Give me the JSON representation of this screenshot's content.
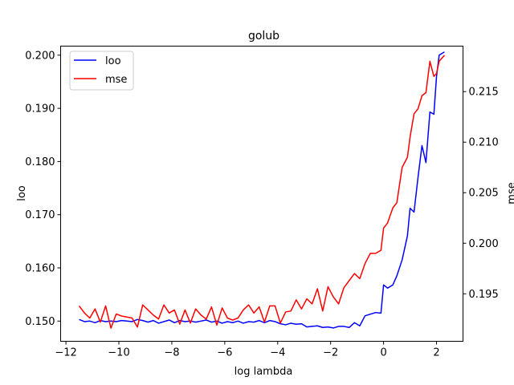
{
  "chart_data": {
    "type": "line",
    "title": "golub",
    "xlabel": "log lambda",
    "ylabel_left": "loo",
    "ylabel_right": "mse",
    "xlim": [
      -12.2,
      3.0
    ],
    "ylim_left": [
      0.1462,
      0.2017
    ],
    "ylim_right": [
      0.1903,
      0.2195
    ],
    "x_ticks": [
      -12,
      -10,
      -8,
      -6,
      -4,
      -2,
      0,
      2
    ],
    "x_tick_labels": [
      "−12",
      "−10",
      "−8",
      "−6",
      "−4",
      "−2",
      "0",
      "2"
    ],
    "y_left_ticks": [
      0.15,
      0.16,
      0.17,
      0.18,
      0.19,
      0.2
    ],
    "y_left_tick_labels": [
      "0.150",
      "0.160",
      "0.170",
      "0.180",
      "0.190",
      "0.200"
    ],
    "y_right_ticks": [
      0.195,
      0.2,
      0.205,
      0.21,
      0.215
    ],
    "y_right_tick_labels": [
      "0.195",
      "0.200",
      "0.205",
      "0.210",
      "0.215"
    ],
    "legend_position": "upper-left",
    "series": [
      {
        "name": "loo",
        "axis": "left",
        "color": "#0000ff",
        "x": [
          -11.5,
          -11.3,
          -11.1,
          -10.9,
          -10.7,
          -10.5,
          -10.3,
          -10.1,
          -9.9,
          -9.7,
          -9.5,
          -9.3,
          -9.1,
          -8.9,
          -8.7,
          -8.5,
          -8.3,
          -8.1,
          -7.9,
          -7.7,
          -7.5,
          -7.3,
          -7.1,
          -6.9,
          -6.7,
          -6.5,
          -6.3,
          -6.1,
          -5.9,
          -5.7,
          -5.5,
          -5.3,
          -5.1,
          -4.9,
          -4.7,
          -4.5,
          -4.3,
          -4.1,
          -3.9,
          -3.7,
          -3.5,
          -3.3,
          -3.1,
          -2.9,
          -2.7,
          -2.5,
          -2.3,
          -2.1,
          -1.9,
          -1.7,
          -1.5,
          -1.3,
          -1.1,
          -0.9,
          -0.7,
          -0.5,
          -0.3,
          -0.1,
          0.0,
          0.15,
          0.35,
          0.5,
          0.7,
          0.9,
          1.0,
          1.15,
          1.3,
          1.45,
          1.6,
          1.75,
          1.9,
          2.0,
          2.1,
          2.3
        ],
        "y": [
          0.1503,
          0.1499,
          0.15,
          0.1497,
          0.1501,
          0.1499,
          0.15,
          0.1499,
          0.1501,
          0.15,
          0.1499,
          0.1503,
          0.1501,
          0.1498,
          0.1501,
          0.1496,
          0.1499,
          0.1502,
          0.1497,
          0.1501,
          0.1499,
          0.15,
          0.1498,
          0.15,
          0.1502,
          0.1498,
          0.15,
          0.1496,
          0.1499,
          0.1497,
          0.15,
          0.1496,
          0.1499,
          0.1498,
          0.1501,
          0.1497,
          0.1501,
          0.1499,
          0.1495,
          0.1493,
          0.1496,
          0.1494,
          0.1495,
          0.1489,
          0.149,
          0.1491,
          0.1488,
          0.1489,
          0.1487,
          0.149,
          0.149,
          0.1488,
          0.1497,
          0.1491,
          0.151,
          0.1513,
          0.1516,
          0.1515,
          0.1568,
          0.1562,
          0.1568,
          0.1585,
          0.1615,
          0.166,
          0.1712,
          0.1705,
          0.177,
          0.183,
          0.1798,
          0.1893,
          0.1889,
          0.196,
          0.2,
          0.2006
        ]
      },
      {
        "name": "mse",
        "axis": "right",
        "color": "#ff0000",
        "x": [
          -11.5,
          -11.3,
          -11.1,
          -10.9,
          -10.7,
          -10.5,
          -10.3,
          -10.1,
          -9.9,
          -9.7,
          -9.5,
          -9.3,
          -9.1,
          -8.9,
          -8.7,
          -8.5,
          -8.3,
          -8.1,
          -7.9,
          -7.7,
          -7.5,
          -7.3,
          -7.1,
          -6.9,
          -6.7,
          -6.5,
          -6.3,
          -6.1,
          -5.9,
          -5.7,
          -5.5,
          -5.3,
          -5.1,
          -4.9,
          -4.7,
          -4.5,
          -4.3,
          -4.1,
          -3.9,
          -3.7,
          -3.5,
          -3.3,
          -3.1,
          -2.9,
          -2.7,
          -2.5,
          -2.3,
          -2.1,
          -1.9,
          -1.7,
          -1.5,
          -1.3,
          -1.1,
          -0.9,
          -0.7,
          -0.5,
          -0.3,
          -0.1,
          0.0,
          0.15,
          0.35,
          0.5,
          0.7,
          0.9,
          1.0,
          1.15,
          1.3,
          1.45,
          1.6,
          1.75,
          1.9,
          2.0,
          2.1,
          2.3
        ],
        "y": [
          0.1938,
          0.1931,
          0.1926,
          0.1935,
          0.1922,
          0.1938,
          0.1916,
          0.193,
          0.1928,
          0.1927,
          0.1926,
          0.1917,
          0.1939,
          0.1934,
          0.1929,
          0.1925,
          0.1939,
          0.1931,
          0.1934,
          0.192,
          0.1934,
          0.1921,
          0.1935,
          0.1929,
          0.1925,
          0.1937,
          0.1919,
          0.1936,
          0.1926,
          0.1924,
          0.1926,
          0.1934,
          0.1939,
          0.1931,
          0.1937,
          0.1922,
          0.1938,
          0.1938,
          0.1921,
          0.1932,
          0.1933,
          0.1944,
          0.1935,
          0.1945,
          0.194,
          0.1955,
          0.1933,
          0.1957,
          0.1947,
          0.194,
          0.1956,
          0.1963,
          0.197,
          0.1965,
          0.198,
          0.199,
          0.199,
          0.1993,
          0.2015,
          0.202,
          0.2035,
          0.204,
          0.2075,
          0.2085,
          0.2105,
          0.2128,
          0.2133,
          0.2146,
          0.2149,
          0.218,
          0.2165,
          0.2168,
          0.218,
          0.2186
        ]
      }
    ]
  }
}
